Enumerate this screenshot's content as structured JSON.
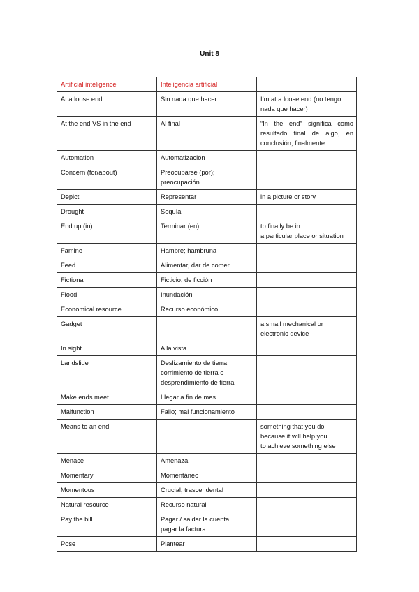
{
  "title": "Unit 8",
  "table": {
    "header": [
      "Artificial inteligence",
      "Inteligencia artificial",
      ""
    ],
    "header_color": "#d42020",
    "rows": [
      [
        "At a loose end",
        "Sin nada que hacer",
        "I’m at a loose end (no tengo\nnada que hacer)"
      ],
      [
        "At the end VS in the end",
        "Al final",
        "“In the end” significa como resultado final de algo, en conclusión, finalmente"
      ],
      [
        "Automation",
        "Automatización",
        ""
      ],
      [
        "Concern (for/about)",
        "Preocuparse (por);\npreocupación",
        ""
      ],
      [
        "Depict",
        "Representar",
        [
          {
            "t": "in a "
          },
          {
            "t": "picture",
            "u": true
          },
          {
            "t": " or "
          },
          {
            "t": "story",
            "u": true
          }
        ]
      ],
      [
        "Drought",
        "Sequía",
        ""
      ],
      [
        "End up (in)",
        "Terminar (en)",
        "to finally be in\na particular place or situation"
      ],
      [
        "Famine",
        "Hambre; hambruna",
        ""
      ],
      [
        "Feed",
        "Alimentar, dar de comer",
        ""
      ],
      [
        "Fictional",
        "Ficticio; de ficción",
        ""
      ],
      [
        "Flood",
        "Inundación",
        ""
      ],
      [
        "Economical resource",
        "Recurso económico",
        ""
      ],
      [
        "Gadget",
        "",
        "a small mechanical or\nelectronic device"
      ],
      [
        "In sight",
        "A la vista",
        ""
      ],
      [
        "Landslide",
        "Deslizamiento de tierra,\ncorrimiento de tierra o\ndesprendimiento de tierra",
        ""
      ],
      [
        "Make ends meet",
        "Llegar a fin de mes",
        ""
      ],
      [
        "Malfunction",
        "Fallo; mal funcionamiento",
        ""
      ],
      [
        "Means to an end",
        "",
        "something that you do\nbecause it will help you\nto achieve something else"
      ],
      [
        "Menace",
        "Amenaza",
        ""
      ],
      [
        "Momentary",
        "Momentáneo",
        ""
      ],
      [
        "Momentous",
        "Crucial, trascendental",
        ""
      ],
      [
        "Natural resource",
        "Recurso natural",
        ""
      ],
      [
        "Pay the bill",
        "Pagar / saldar la cuenta,\npagar la factura",
        ""
      ],
      [
        "Pose",
        "Plantear",
        ""
      ]
    ]
  }
}
